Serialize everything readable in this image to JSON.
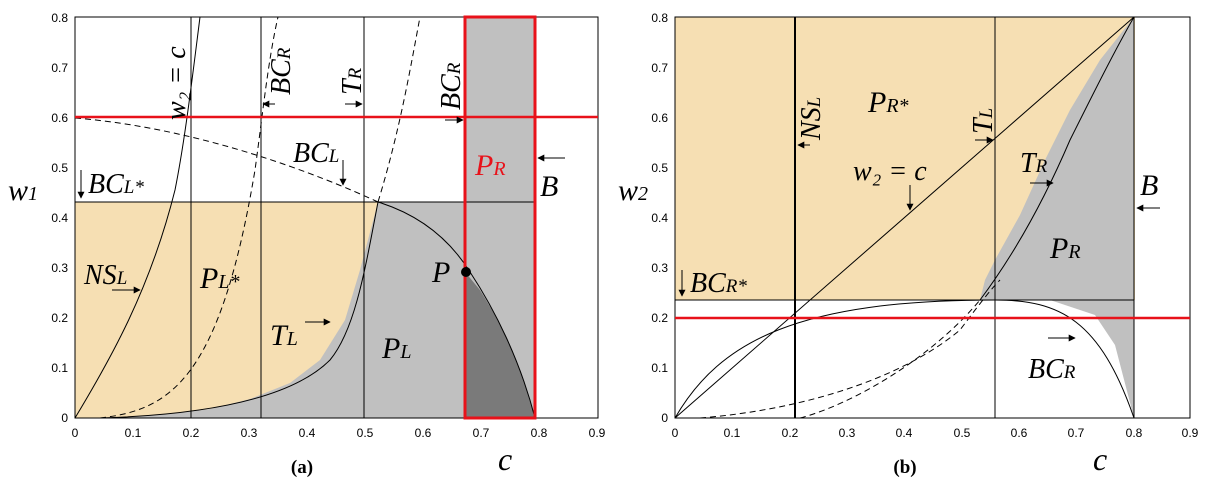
{
  "panels": {
    "a": {
      "caption": "(a)",
      "xlabel": "c",
      "ylabel": "w",
      "ylabel_sub": "1",
      "x_ticks": [
        "0",
        "0.1",
        "0.2",
        "0.3",
        "0.4",
        "0.5",
        "0.6",
        "0.7",
        "0.8",
        "0.9"
      ],
      "y_ticks": [
        "0",
        "0.1",
        "0.2",
        "0.3",
        "0.4",
        "0.5",
        "0.6",
        "0.7",
        "0.8"
      ],
      "xlim": [
        0,
        0.9
      ],
      "ylim": [
        0,
        0.8
      ],
      "labels": {
        "w2c": "w₂ = c",
        "bcr_top": "BC",
        "bcr_top_sub": "R",
        "tr": "T",
        "tr_sub": "R",
        "bcr_top2": "BC",
        "bcr_top2_sub": "R",
        "bcl": "BC",
        "bcl_sub": "L",
        "bclstar": "BC",
        "bclstar_sub": "L*",
        "nsl": "NS",
        "nsl_sub": "L",
        "plstar": "P",
        "plstar_sub": "L*",
        "tl": "T",
        "tl_sub": "L",
        "pl": "P",
        "pl_sub": "L",
        "pr": "P",
        "pr_sub": "R",
        "b": "B",
        "p": "P"
      },
      "colors": {
        "tan": "#f6dfb3",
        "gray": "#c0c0c0",
        "darkgray": "#7a7a7a",
        "red": "#e8121a"
      }
    },
    "b": {
      "caption": "(b)",
      "xlabel": "c",
      "ylabel": "w",
      "ylabel_sub": "2",
      "x_ticks": [
        "0",
        "0.1",
        "0.2",
        "0.3",
        "0.4",
        "0.5",
        "0.6",
        "0.7",
        "0.8",
        "0.9"
      ],
      "y_ticks": [
        "0",
        "0.1",
        "0.2",
        "0.3",
        "0.4",
        "0.5",
        "0.6",
        "0.7",
        "0.8"
      ],
      "xlim": [
        0,
        0.9
      ],
      "ylim": [
        0,
        0.8
      ],
      "labels": {
        "nsl": "NS",
        "nsl_sub": "L",
        "prstar": "P",
        "prstar_sub": "R*",
        "tl": "T",
        "tl_sub": "L",
        "w2c": "w₂ = c",
        "tr": "T",
        "tr_sub": "R",
        "b": "B",
        "pr": "P",
        "pr_sub": "R",
        "bcrstar": "BC",
        "bcrstar_sub": "R*",
        "bcr": "BC",
        "bcr_sub": "R"
      }
    }
  }
}
